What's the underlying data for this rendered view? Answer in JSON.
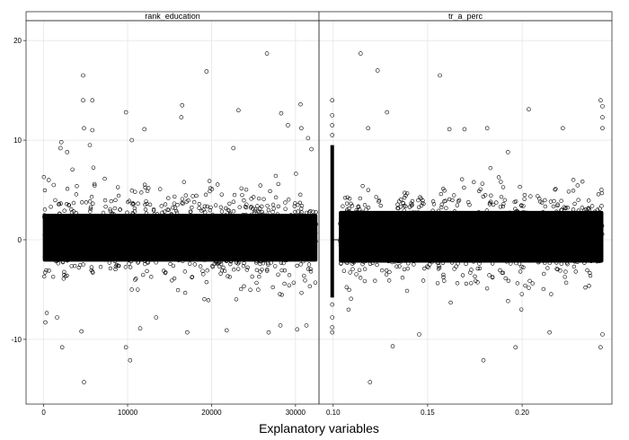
{
  "chart_data": {
    "type": "scatter",
    "xlabel": "Explanatory variables",
    "ylabel": "",
    "ylim": [
      -16.5,
      22
    ],
    "y_ticks": [
      -10,
      0,
      10,
      20
    ],
    "y_tick_labels": [
      "-10",
      "0",
      "10",
      "20"
    ],
    "grid": true,
    "marker": "open-circle",
    "point_color": "#000000",
    "panels": [
      {
        "name": "rank_education",
        "xlim": [
          -2100,
          32800
        ],
        "x_ticks": [
          0,
          10000,
          20000,
          30000
        ],
        "x_tick_labels": [
          "0",
          "10000",
          "20000",
          "30000"
        ],
        "dense_band": {
          "x_range": [
            0,
            32500
          ],
          "y_core": [
            -2.2,
            2.6
          ]
        },
        "points": [
          [
            600,
            6
          ],
          [
            1200,
            5.5
          ],
          [
            2000,
            9.2
          ],
          [
            2100,
            9.8
          ],
          [
            2800,
            8.8
          ],
          [
            4700,
            16.5
          ],
          [
            4700,
            14
          ],
          [
            5800,
            14
          ],
          [
            4800,
            11.2
          ],
          [
            5800,
            11
          ],
          [
            5500,
            9.5
          ],
          [
            9800,
            12.8
          ],
          [
            10500,
            10
          ],
          [
            12000,
            11.1
          ],
          [
            16500,
            13.5
          ],
          [
            16400,
            12.3
          ],
          [
            19400,
            16.9
          ],
          [
            22600,
            9.2
          ],
          [
            23200,
            13
          ],
          [
            26600,
            18.7
          ],
          [
            28300,
            12.7
          ],
          [
            29100,
            11.5
          ],
          [
            30600,
            13.6
          ],
          [
            30700,
            11.2
          ],
          [
            31500,
            10.2
          ],
          [
            31900,
            9.1
          ],
          [
            200,
            -8.3
          ],
          [
            1600,
            -7.8
          ],
          [
            2200,
            -10.8
          ],
          [
            4500,
            -9.2
          ],
          [
            4800,
            -14.3
          ],
          [
            9800,
            -10.8
          ],
          [
            10300,
            -12.1
          ],
          [
            11500,
            -8.9
          ],
          [
            13400,
            -7.8
          ],
          [
            17100,
            -9.3
          ],
          [
            21800,
            -9.1
          ],
          [
            26800,
            -9.3
          ],
          [
            28200,
            -8.6
          ],
          [
            30200,
            -9
          ],
          [
            31300,
            -8.6
          ]
        ]
      },
      {
        "name": "tr_a_perc",
        "xlim": [
          0.0925,
          0.2475
        ],
        "x_ticks": [
          0.1,
          0.15,
          0.2
        ],
        "x_tick_labels": [
          "0.10",
          "0.15",
          "0.20"
        ],
        "dense_band": {
          "x_range": [
            0.1035,
            0.2425
          ],
          "y_core": [
            -2.3,
            2.9
          ]
        },
        "vertical_band": {
          "x": 0.0995,
          "y_range": [
            -5.8,
            9.5
          ]
        },
        "points": [
          [
            0.0995,
            14
          ],
          [
            0.0995,
            12.5
          ],
          [
            0.0995,
            11.5
          ],
          [
            0.0995,
            10.5
          ],
          [
            0.0995,
            -6.5
          ],
          [
            0.0995,
            -7.8
          ],
          [
            0.0995,
            -8.8
          ],
          [
            0.0995,
            -9.3
          ],
          [
            0.1145,
            18.7
          ],
          [
            0.1235,
            17
          ],
          [
            0.1285,
            12.8
          ],
          [
            0.1185,
            11.2
          ],
          [
            0.1565,
            16.5
          ],
          [
            0.1615,
            11.1
          ],
          [
            0.1695,
            11.1
          ],
          [
            0.1815,
            11.2
          ],
          [
            0.1925,
            8.8
          ],
          [
            0.2035,
            13.1
          ],
          [
            0.2215,
            11.2
          ],
          [
            0.2415,
            14
          ],
          [
            0.2425,
            13.4
          ],
          [
            0.2425,
            12.3
          ],
          [
            0.2425,
            11.2
          ],
          [
            0.1195,
            -14.3
          ],
          [
            0.1315,
            -10.7
          ],
          [
            0.1455,
            -9.5
          ],
          [
            0.1795,
            -12.1
          ],
          [
            0.1965,
            -10.8
          ],
          [
            0.2145,
            -9.3
          ],
          [
            0.2415,
            -10.8
          ],
          [
            0.2425,
            -9.5
          ]
        ]
      }
    ]
  }
}
